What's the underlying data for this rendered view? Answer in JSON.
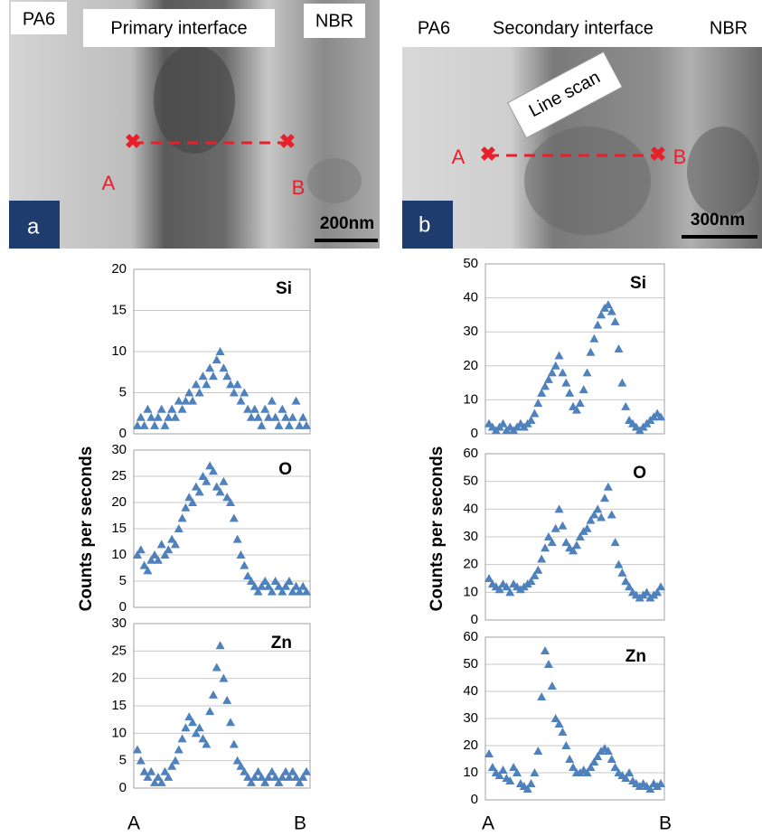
{
  "micrographs": [
    {
      "left_label": "PA6",
      "title": "Primary interface",
      "right_label": "NBR",
      "point_a": "A",
      "point_b": "B",
      "panel": "a",
      "scale": "200nm"
    },
    {
      "left_label": "PA6",
      "title": "Secondary interface",
      "right_label": "NBR",
      "scan_label": "Line scan",
      "point_a": "A",
      "point_b": "B",
      "panel": "b",
      "scale": "300nm"
    }
  ],
  "y_axis_labels": [
    "Counts per seconds",
    "Counts per seconds"
  ],
  "x_axis_ends": [
    {
      "start": "A",
      "end": "B"
    },
    {
      "start": "A",
      "end": "B"
    }
  ],
  "chart_data": [
    {
      "type": "scatter",
      "title": "Si",
      "color": "#4f81bd",
      "xlim": [
        0,
        49
      ],
      "ylim": [
        0,
        20
      ],
      "yticks": [
        0,
        5,
        10,
        15,
        20
      ],
      "grid": true,
      "x": [
        0,
        1,
        2,
        3,
        4,
        5,
        6,
        7,
        8,
        9,
        10,
        11,
        12,
        13,
        14,
        15,
        16,
        17,
        18,
        19,
        20,
        21,
        22,
        23,
        24,
        25,
        26,
        27,
        28,
        29,
        30,
        31,
        32,
        33,
        34,
        35,
        36,
        37,
        38,
        39,
        40,
        41,
        42,
        43,
        44,
        45,
        46,
        47,
        48,
        49
      ],
      "values": [
        1,
        2,
        1,
        3,
        2,
        1,
        2,
        3,
        1,
        2,
        3,
        2,
        4,
        3,
        4,
        5,
        4,
        6,
        5,
        7,
        6,
        8,
        7,
        9,
        10,
        8,
        7,
        6,
        5,
        6,
        4,
        5,
        3,
        2,
        3,
        2,
        1,
        3,
        2,
        4,
        2,
        1,
        3,
        2,
        1,
        2,
        4,
        1,
        2,
        1
      ]
    },
    {
      "type": "scatter",
      "title": "O",
      "color": "#4f81bd",
      "xlim": [
        0,
        49
      ],
      "ylim": [
        0,
        30
      ],
      "yticks": [
        0,
        5,
        10,
        15,
        20,
        25,
        30
      ],
      "grid": true,
      "x": [
        0,
        1,
        2,
        3,
        4,
        5,
        6,
        7,
        8,
        9,
        10,
        11,
        12,
        13,
        14,
        15,
        16,
        17,
        18,
        19,
        20,
        21,
        22,
        23,
        24,
        25,
        26,
        27,
        28,
        29,
        30,
        31,
        32,
        33,
        34,
        35,
        36,
        37,
        38,
        39,
        40,
        41,
        42,
        43,
        44,
        45,
        46,
        47,
        48,
        49
      ],
      "values": [
        10,
        11,
        8,
        7,
        9,
        10,
        9,
        12,
        10,
        11,
        13,
        12,
        15,
        17,
        19,
        21,
        20,
        23,
        22,
        25,
        24,
        27,
        26,
        23,
        22,
        24,
        21,
        20,
        17,
        13,
        10,
        8,
        6,
        5,
        4,
        3,
        4,
        5,
        4,
        3,
        5,
        4,
        3,
        4,
        5,
        3,
        4,
        3,
        4,
        3
      ]
    },
    {
      "type": "scatter",
      "title": "Zn",
      "color": "#4f81bd",
      "xlim": [
        0,
        49
      ],
      "ylim": [
        0,
        30
      ],
      "yticks": [
        0,
        5,
        10,
        15,
        20,
        25,
        30
      ],
      "grid": true,
      "x": [
        0,
        1,
        2,
        3,
        4,
        5,
        6,
        7,
        8,
        9,
        10,
        11,
        12,
        13,
        14,
        15,
        16,
        17,
        18,
        19,
        20,
        21,
        22,
        23,
        24,
        25,
        26,
        27,
        28,
        29,
        30,
        31,
        32,
        33,
        34,
        35,
        36,
        37,
        38,
        39,
        40,
        41,
        42,
        43,
        44,
        45,
        46,
        47,
        48,
        49
      ],
      "values": [
        7,
        5,
        3,
        2,
        3,
        1,
        2,
        1,
        3,
        2,
        4,
        5,
        7,
        9,
        11,
        13,
        12,
        10,
        11,
        9,
        8,
        14,
        17,
        22,
        26,
        20,
        16,
        12,
        8,
        5,
        4,
        3,
        2,
        1,
        2,
        3,
        2,
        1,
        2,
        3,
        2,
        1,
        2,
        3,
        2,
        3,
        2,
        1,
        2,
        3
      ]
    },
    {
      "type": "scatter",
      "title": "Si",
      "color": "#4f81bd",
      "xlim": [
        0,
        49
      ],
      "ylim": [
        0,
        50
      ],
      "yticks": [
        0,
        10,
        20,
        30,
        40,
        50
      ],
      "grid": true,
      "x": [
        0,
        1,
        2,
        3,
        4,
        5,
        6,
        7,
        8,
        9,
        10,
        11,
        12,
        13,
        14,
        15,
        16,
        17,
        18,
        19,
        20,
        21,
        22,
        23,
        24,
        25,
        26,
        27,
        28,
        29,
        30,
        31,
        32,
        33,
        34,
        35,
        36,
        37,
        38,
        39,
        40,
        41,
        42,
        43,
        44,
        45,
        46,
        47,
        48,
        49
      ],
      "values": [
        3,
        2,
        1,
        2,
        3,
        1,
        2,
        1,
        2,
        3,
        2,
        3,
        4,
        6,
        9,
        12,
        14,
        16,
        18,
        20,
        23,
        18,
        15,
        12,
        8,
        7,
        9,
        13,
        18,
        24,
        28,
        32,
        35,
        37,
        38,
        36,
        33,
        25,
        15,
        8,
        4,
        3,
        2,
        1,
        2,
        3,
        4,
        5,
        6,
        5
      ]
    },
    {
      "type": "scatter",
      "title": "O",
      "color": "#4f81bd",
      "xlim": [
        0,
        49
      ],
      "ylim": [
        0,
        60
      ],
      "yticks": [
        0,
        10,
        20,
        30,
        40,
        50,
        60
      ],
      "grid": true,
      "x": [
        0,
        1,
        2,
        3,
        4,
        5,
        6,
        7,
        8,
        9,
        10,
        11,
        12,
        13,
        14,
        15,
        16,
        17,
        18,
        19,
        20,
        21,
        22,
        23,
        24,
        25,
        26,
        27,
        28,
        29,
        30,
        31,
        32,
        33,
        34,
        35,
        36,
        37,
        38,
        39,
        40,
        41,
        42,
        43,
        44,
        45,
        46,
        47,
        48,
        49
      ],
      "values": [
        15,
        13,
        12,
        11,
        13,
        12,
        10,
        13,
        12,
        11,
        12,
        13,
        14,
        16,
        18,
        22,
        26,
        30,
        28,
        33,
        40,
        34,
        28,
        26,
        25,
        27,
        30,
        32,
        33,
        36,
        38,
        40,
        37,
        44,
        48,
        38,
        28,
        20,
        17,
        14,
        12,
        10,
        9,
        8,
        9,
        10,
        8,
        9,
        10,
        12
      ]
    },
    {
      "type": "scatter",
      "title": "Zn",
      "color": "#4f81bd",
      "xlim": [
        0,
        49
      ],
      "ylim": [
        0,
        60
      ],
      "yticks": [
        0,
        10,
        20,
        30,
        40,
        50,
        60
      ],
      "grid": true,
      "x": [
        0,
        1,
        2,
        3,
        4,
        5,
        6,
        7,
        8,
        9,
        10,
        11,
        12,
        13,
        14,
        15,
        16,
        17,
        18,
        19,
        20,
        21,
        22,
        23,
        24,
        25,
        26,
        27,
        28,
        29,
        30,
        31,
        32,
        33,
        34,
        35,
        36,
        37,
        38,
        39,
        40,
        41,
        42,
        43,
        44,
        45,
        46,
        47,
        48,
        49
      ],
      "values": [
        17,
        12,
        10,
        9,
        11,
        8,
        7,
        12,
        10,
        6,
        5,
        4,
        6,
        10,
        18,
        38,
        55,
        50,
        42,
        30,
        28,
        25,
        20,
        15,
        12,
        10,
        10,
        11,
        10,
        12,
        14,
        16,
        18,
        19,
        18,
        15,
        12,
        10,
        9,
        8,
        10,
        7,
        6,
        5,
        6,
        5,
        4,
        6,
        5,
        6
      ]
    }
  ]
}
